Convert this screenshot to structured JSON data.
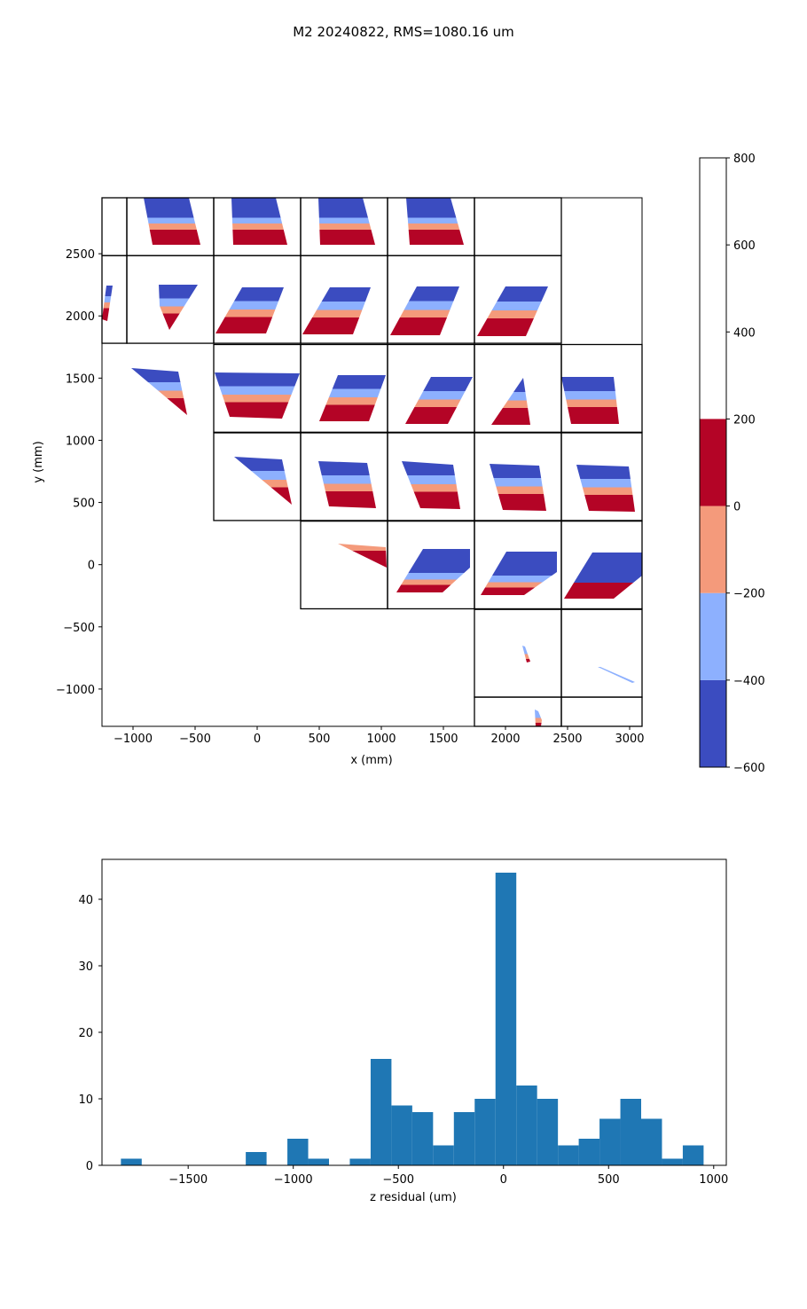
{
  "figure": {
    "title": "M2 20240822, RMS=1080.16 um"
  },
  "chart_data": [
    {
      "type": "heatmap",
      "subtype": "filled-contour panel map",
      "xlabel": "x (mm)",
      "ylabel": "y (mm)",
      "xlim": [
        -1250,
        3100
      ],
      "ylim": [
        -1300,
        2950
      ],
      "x_ticks": [
        -1000,
        -500,
        0,
        500,
        1000,
        1500,
        2000,
        2500,
        3000
      ],
      "x_tick_labels": [
        "−1000",
        "−500",
        "0",
        "500",
        "1000",
        "1500",
        "2000",
        "2500",
        "3000"
      ],
      "y_ticks": [
        -1000,
        -500,
        0,
        500,
        1000,
        1500,
        2000,
        2500
      ],
      "y_tick_labels": [
        "−1000",
        "−500",
        "0",
        "500",
        "1000",
        "1500",
        "2000",
        "2500"
      ],
      "grid": false,
      "panel_size_mm": [
        700,
        705
      ],
      "panel_columns": [
        {
          "x0": -1050,
          "y_bottoms": [
            1780,
            2485
          ]
        },
        {
          "x0": -350,
          "y_bottoms": [
            355,
            1065,
            1780,
            2485
          ]
        },
        {
          "x0": 350,
          "y_bottoms": [
            -355,
            355,
            1065,
            1780,
            2485
          ]
        },
        {
          "x0": 1050,
          "y_bottoms": [
            -355,
            355,
            1065,
            1780,
            2485
          ]
        },
        {
          "x0": 1750,
          "y_bottoms": [
            -1065,
            -355,
            355,
            1065,
            1780,
            2485
          ]
        },
        {
          "x0": 2450,
          "y_bottoms": [
            -1065,
            -355,
            355,
            1065
          ]
        }
      ],
      "colorbar": {
        "levels": [
          -600,
          -400,
          -200,
          0,
          200,
          800
        ],
        "tick_labels": [
          "−600",
          "−400",
          "−200",
          "0",
          "200",
          "400",
          "600",
          "800"
        ],
        "tick_values": [
          -600,
          -400,
          -200,
          0,
          200,
          400,
          600,
          800
        ],
        "colors": [
          "#3b4cc0",
          "#8db0fe",
          "#f49a7b",
          "#b40426"
        ]
      }
    },
    {
      "type": "bar",
      "subtype": "histogram",
      "xlabel": "z residual (um)",
      "ylabel": "",
      "xlim": [
        -1910,
        1060
      ],
      "ylim": [
        0,
        46
      ],
      "x_ticks": [
        -1500,
        -1000,
        -500,
        0,
        500,
        1000
      ],
      "x_tick_labels": [
        "−1500",
        "−1000",
        "−500",
        "0",
        "500",
        "1000"
      ],
      "y_ticks": [
        0,
        10,
        20,
        30,
        40
      ],
      "y_tick_labels": [
        "0",
        "10",
        "20",
        "30",
        "40"
      ],
      "bin_start": -1820,
      "bin_width": 99,
      "counts": [
        1,
        0,
        0,
        0,
        0,
        0,
        2,
        0,
        4,
        1,
        0,
        1,
        16,
        9,
        8,
        3,
        8,
        10,
        44,
        12,
        10,
        3,
        4,
        7,
        10,
        7,
        1,
        3
      ],
      "color": "#1f77b4"
    }
  ]
}
